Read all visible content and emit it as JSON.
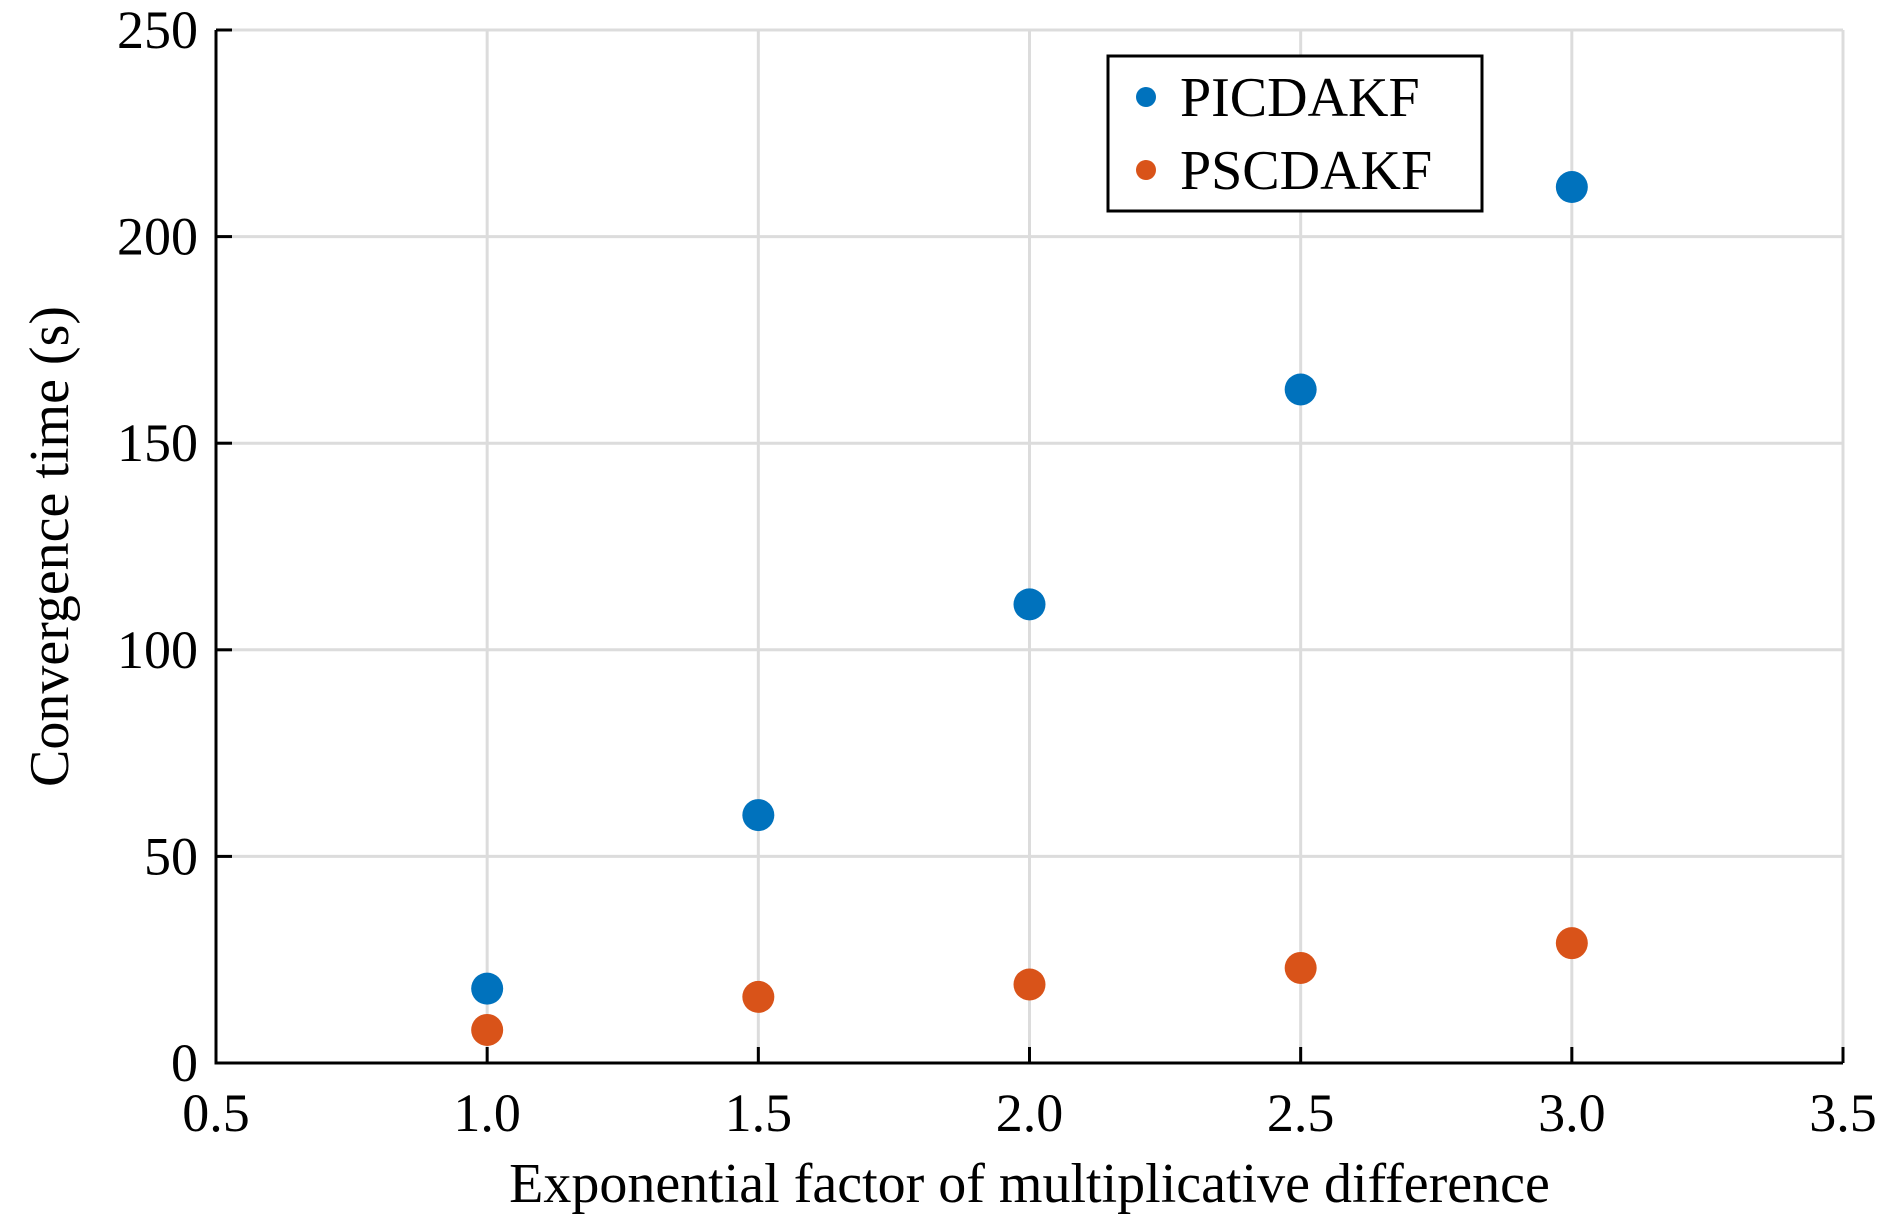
{
  "chart_data": {
    "type": "scatter",
    "title": "",
    "xlabel": "Exponential factor of multiplicative difference",
    "ylabel": "Convergence time (s)",
    "xlim": [
      0.5,
      3.5
    ],
    "ylim": [
      0,
      250
    ],
    "xticks": [
      "0.5",
      "1.0",
      "1.5",
      "2.0",
      "2.5",
      "3.0",
      "3.5"
    ],
    "xtick_values": [
      0.5,
      1.0,
      1.5,
      2.0,
      2.5,
      3.0,
      3.5
    ],
    "yticks": [
      "0",
      "50",
      "100",
      "150",
      "200",
      "250"
    ],
    "ytick_values": [
      0,
      50,
      100,
      150,
      200,
      250
    ],
    "grid": true,
    "legend_position": "top-right",
    "series": [
      {
        "name": "PICDAKF",
        "color": "#0072BD",
        "x": [
          1.0,
          1.5,
          2.0,
          2.5,
          3.0
        ],
        "y": [
          18,
          60,
          111,
          163,
          212
        ]
      },
      {
        "name": "PSCDAKF",
        "color": "#D95319",
        "x": [
          1.0,
          1.5,
          2.0,
          2.5,
          3.0
        ],
        "y": [
          8,
          16,
          19,
          23,
          29
        ]
      }
    ]
  }
}
